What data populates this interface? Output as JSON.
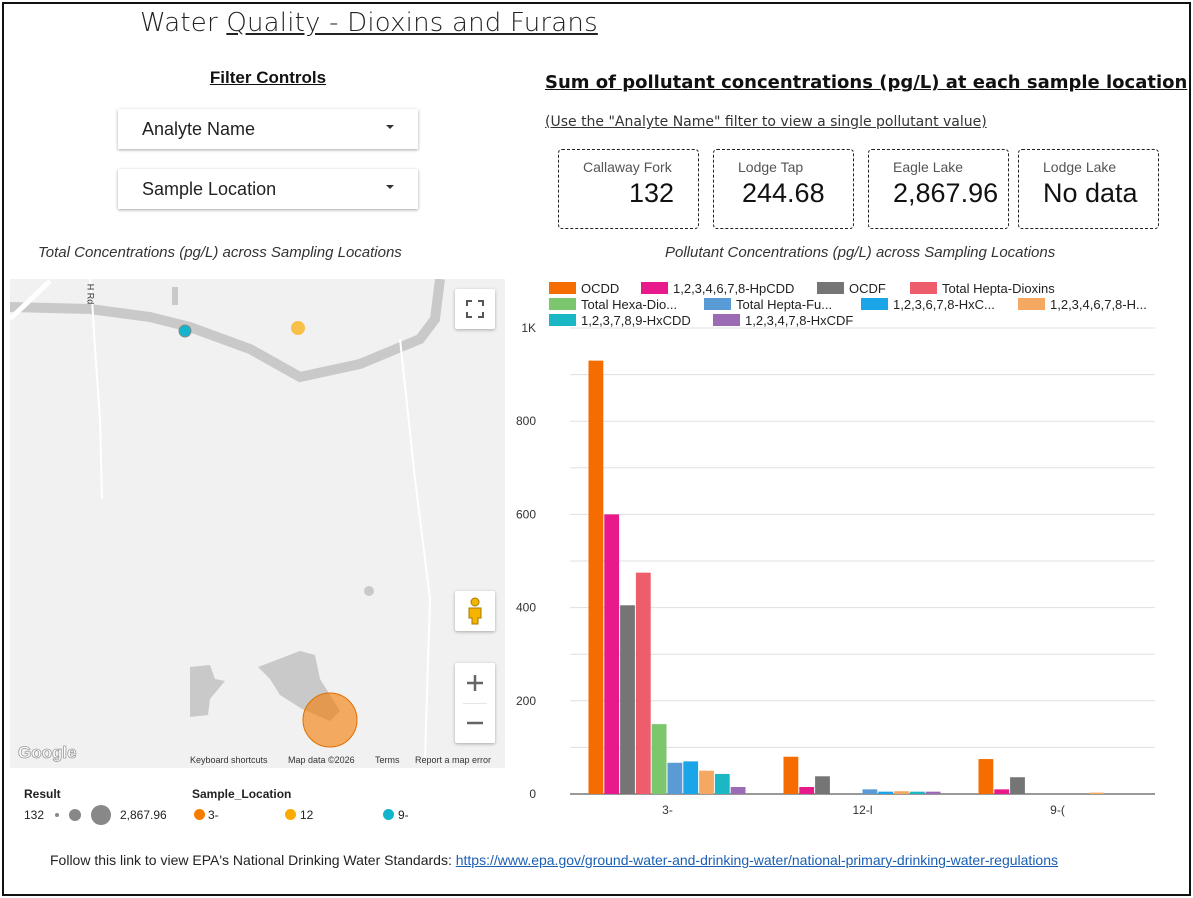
{
  "title_plain": "Water ",
  "title_underlined": "Quality - Dioxins and Furans",
  "filters": {
    "heading": "Filter Controls",
    "analyte_label": "Analyte Name",
    "location_label": "Sample Location"
  },
  "summary": {
    "heading": "Sum of pollutant concentrations (pg/L) at each sample location",
    "subheading": "(Use the \"Analyte Name\" filter to view a single pollutant value)",
    "cards": [
      {
        "label": "Callaway Fork",
        "value": "132"
      },
      {
        "label": "Lodge Tap",
        "value": "244.68"
      },
      {
        "label": "Eagle Lake",
        "value": "2,867.96"
      },
      {
        "label": "Lodge Lake",
        "value": "No data"
      }
    ]
  },
  "map": {
    "caption": "Total Concentrations (pg/L) across Sampling Locations",
    "road_label": "H Rd",
    "footer_links": [
      "Keyboard shortcuts",
      "Map data ©2026",
      "Terms",
      "Report a map error"
    ],
    "google_logo": "Google",
    "legend": {
      "result_title": "Result",
      "result_min": "132",
      "result_max": "2,867.96",
      "location_title": "Sample_Location",
      "locations": [
        {
          "label": "3-",
          "color": "#f57c00"
        },
        {
          "label": "12",
          "color": "#f9ab00"
        },
        {
          "label": "9-",
          "color": "#12b5cb"
        }
      ]
    }
  },
  "chart_caption": "Pollutant Concentrations (pg/L) across Sampling Locations",
  "chart_data": {
    "type": "bar",
    "title": "Pollutant Concentrations (pg/L) across Sampling Locations",
    "categories": [
      "3-",
      "12-l",
      "9-("
    ],
    "yticks": [
      "0",
      "200",
      "400",
      "600",
      "800",
      "1K"
    ],
    "ylim": [
      0,
      1000
    ],
    "series": [
      {
        "name": "OCDD",
        "color": "#f56d00",
        "values": [
          930,
          80,
          75
        ]
      },
      {
        "name": "1,2,3,4,6,7,8-HpCDD",
        "color": "#e8198b",
        "values": [
          600,
          15,
          10
        ]
      },
      {
        "name": "OCDF",
        "color": "#757575",
        "values": [
          405,
          38,
          36
        ]
      },
      {
        "name": "Total Hepta-Dioxins",
        "color": "#ee5d6c",
        "values": [
          475,
          0,
          0
        ]
      },
      {
        "name": "Total Hexa-Dio...",
        "color": "#7cc66e",
        "values": [
          150,
          0,
          0
        ]
      },
      {
        "name": "Total Hepta-Fu...",
        "color": "#5b9bd5",
        "values": [
          67,
          10,
          0
        ]
      },
      {
        "name": "1,2,3,6,7,8-HxC...",
        "color": "#1aa5e8",
        "values": [
          70,
          5,
          0
        ]
      },
      {
        "name": "1,2,3,4,6,7,8-H...",
        "color": "#f5a862",
        "values": [
          50,
          6,
          3
        ]
      },
      {
        "name": "1,2,3,7,8,9-HxCDD",
        "color": "#1bb7c4",
        "values": [
          43,
          5,
          0
        ]
      },
      {
        "name": "1,2,3,4,7,8-HxCDF",
        "color": "#9b6bb5",
        "values": [
          15,
          5,
          0
        ]
      }
    ]
  },
  "footer": {
    "text": "Follow this link to view EPA's National Drinking Water Standards: ",
    "link": "https://www.epa.gov/ground-water-and-drinking-water/national-primary-drinking-water-regulations"
  }
}
